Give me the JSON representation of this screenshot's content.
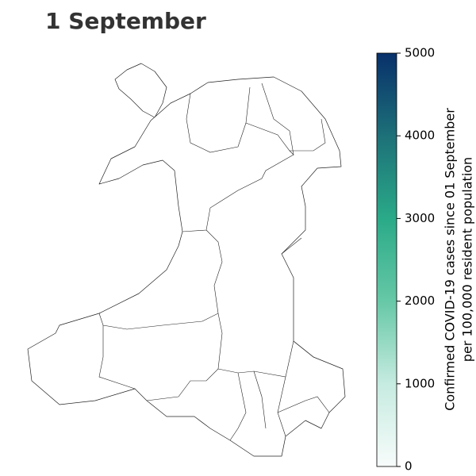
{
  "title": "1 September",
  "colorbar": {
    "label": [
      "Confirmed COVID-19 cases since 01 September",
      "per 100,000 resident population"
    ],
    "lim": [
      0,
      5000
    ],
    "ticks": [
      0,
      1000,
      2000,
      3000,
      4000,
      5000
    ],
    "colors": [
      "#f7fcfb",
      "#c6ebe0",
      "#66c8a6",
      "#2aaa88",
      "#1d7078",
      "#08306b"
    ]
  }
}
